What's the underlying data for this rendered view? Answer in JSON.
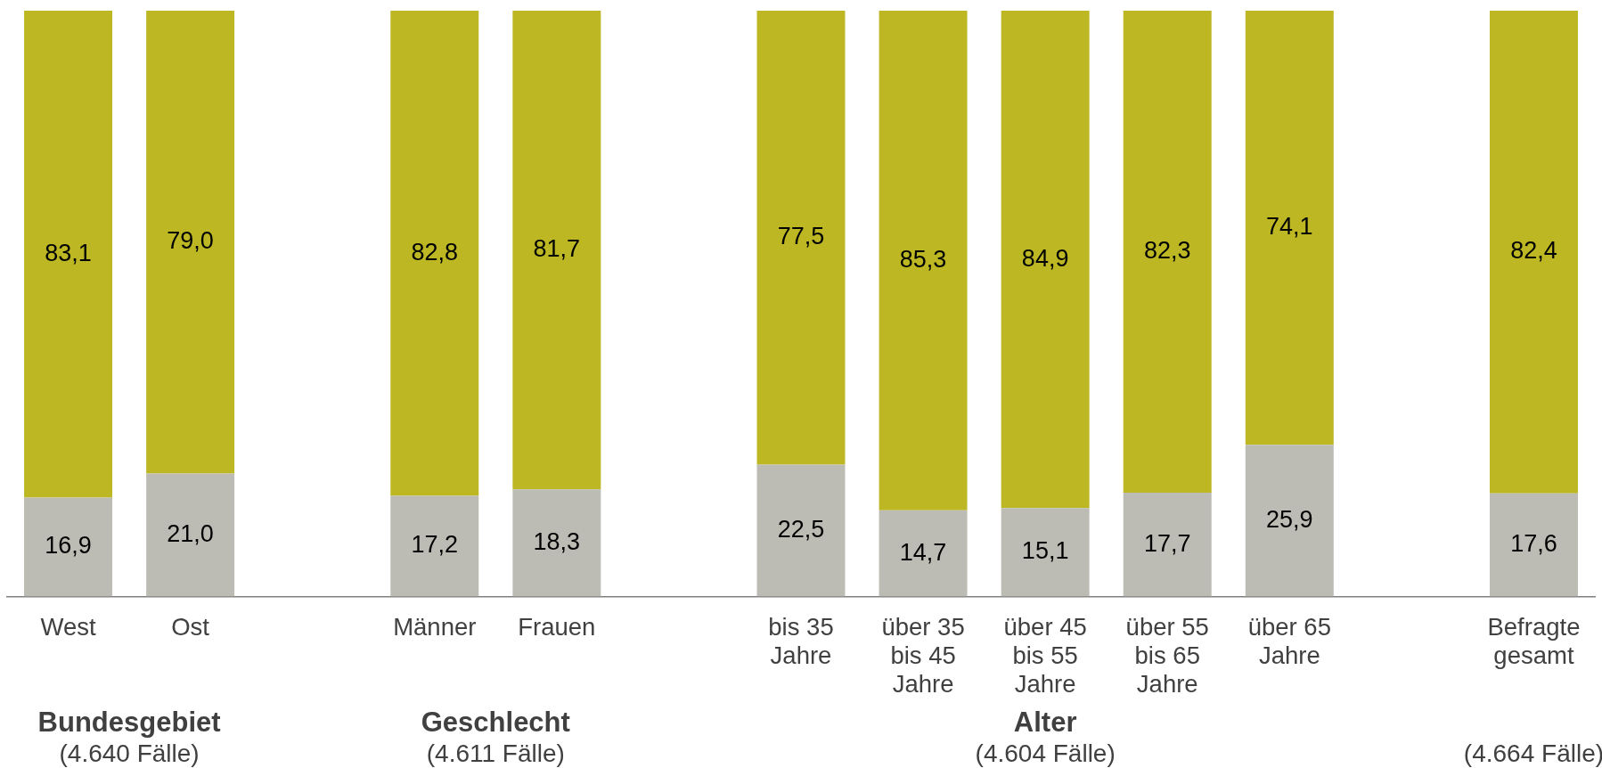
{
  "chart_data": {
    "type": "bar",
    "stacked": true,
    "categories": [
      "West",
      "Ost",
      null,
      "Männer",
      "Frauen",
      null,
      "bis 35 Jahre",
      "über 35 bis 45 Jahre",
      "über 45 bis 55 Jahre",
      "über 55 bis 65 Jahre",
      "über 65 Jahre",
      null,
      "Befragte gesamt"
    ],
    "series": [
      {
        "color": "#bcbcb4",
        "values": [
          16.9,
          21.0,
          null,
          17.2,
          18.3,
          null,
          22.5,
          14.7,
          15.1,
          17.7,
          25.9,
          null,
          17.6
        ],
        "value_labels": [
          "16,9",
          "21,0",
          null,
          "17,2",
          "18,3",
          null,
          "22,5",
          "14,7",
          "15,1",
          "17,7",
          "25,9",
          null,
          "17,6"
        ]
      },
      {
        "color": "#bdb723",
        "values": [
          83.1,
          79.0,
          null,
          82.8,
          81.7,
          null,
          77.5,
          85.3,
          84.9,
          82.3,
          74.1,
          null,
          82.4
        ],
        "value_labels": [
          "83,1",
          "79,0",
          null,
          "82,8",
          "81,7",
          null,
          "77,5",
          "85,3",
          "84,9",
          "82,3",
          "74,1",
          null,
          "82,4"
        ]
      }
    ],
    "ylim": [
      0,
      100
    ],
    "tick_labels": "x",
    "annotations": [
      "Bundesgebiet\n(4.640 Fälle)",
      "Geschlecht\n(4.611 Fälle)",
      "Alter\n(4.604 Fälle)",
      "(4.664 Fälle)"
    ]
  }
}
